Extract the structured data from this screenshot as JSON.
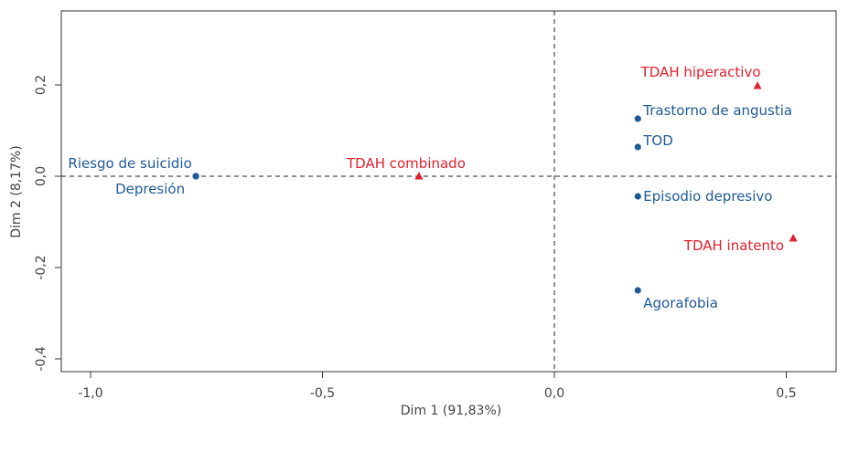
{
  "chart_data": {
    "type": "scatter",
    "title": "",
    "xlabel": "Dim 1 (91,83%)",
    "ylabel": "Dim 2 (8,17%)",
    "xlim": [
      -1.07,
      0.61
    ],
    "ylim": [
      -0.43,
      0.36
    ],
    "xticks": [
      -1.0,
      -0.5,
      0.0,
      0.5
    ],
    "xtick_labels": [
      "-1,0",
      "-0,5",
      "0,0",
      "0,5"
    ],
    "yticks": [
      -0.4,
      -0.2,
      0.0,
      0.2
    ],
    "ytick_labels": [
      "-0,4",
      "-0,2",
      "0,0",
      "0,2"
    ],
    "grid": false,
    "reference_lines": {
      "x": 0,
      "y": 0,
      "style": "dashed"
    },
    "colors": {
      "blue": "#1f5a96",
      "red": "#e0202e"
    },
    "series": [
      {
        "marker": "circle",
        "color": "#1f5a96",
        "points": [
          {
            "label": "Riesgo de suicidio",
            "x": -0.773,
            "y": 0.0
          },
          {
            "label": "Depresión",
            "x": -0.773,
            "y": 0.0
          },
          {
            "label": "Trastorno de angustia",
            "x": 0.18,
            "y": 0.126
          },
          {
            "label": "TOD",
            "x": 0.18,
            "y": 0.064
          },
          {
            "label": "Episodio depresivo",
            "x": 0.18,
            "y": -0.044
          },
          {
            "label": "Agorafobia",
            "x": 0.18,
            "y": -0.25
          }
        ]
      },
      {
        "marker": "triangle",
        "color": "#e0202e",
        "points": [
          {
            "label": "TDAH combinado",
            "x": -0.292,
            "y": 0.0
          },
          {
            "label": "TDAH hiperactivo",
            "x": 0.438,
            "y": 0.198
          },
          {
            "label": "TDAH inatento",
            "x": 0.515,
            "y": -0.136
          }
        ]
      }
    ]
  }
}
